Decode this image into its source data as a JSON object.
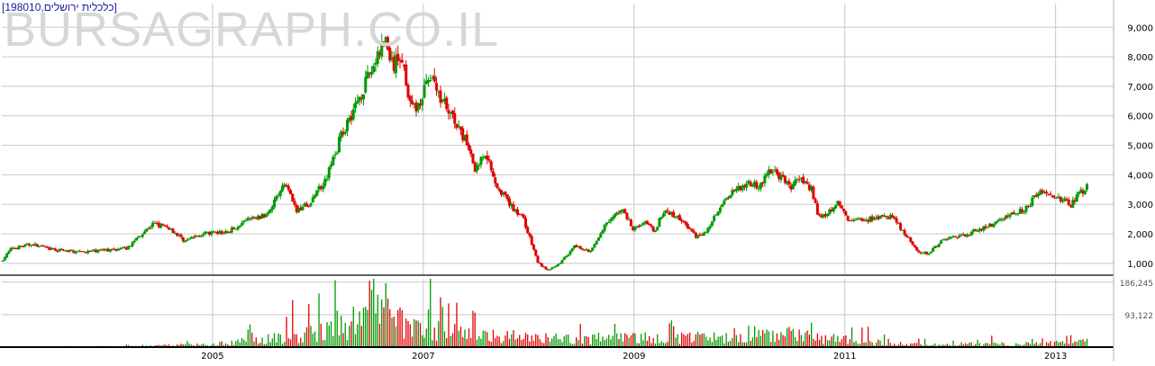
{
  "title": "[כלכלית ירושלים,198010]",
  "watermark": "BURSAGRAPH.CO.IL",
  "colors": {
    "up": "#009900",
    "down": "#e00000",
    "grid": "#c8c8c8",
    "axis": "#000000",
    "label": "#555555"
  },
  "chart_data": {
    "type": "candlestick",
    "price_axis": {
      "ylim": [
        600,
        9800
      ],
      "ticks": [
        1000,
        2000,
        3000,
        4000,
        5000,
        6000,
        7000,
        8000,
        9000
      ],
      "tick_labels": [
        "1,000",
        "2,000",
        "3,000",
        "4,000",
        "5,000",
        "6,000",
        "7,000",
        "8,000",
        "9,000"
      ]
    },
    "volume_axis": {
      "ylim": [
        0,
        196000
      ],
      "ticks": [
        93122,
        186245
      ],
      "tick_labels": [
        "93,122",
        "186,245"
      ]
    },
    "x_axis": {
      "xlim": [
        2003.0,
        2013.55
      ],
      "ticks": [
        2005,
        2007,
        2009,
        2011,
        2013
      ],
      "tick_labels": [
        "2005",
        "2007",
        "2009",
        "2011",
        "2013"
      ]
    },
    "price_path": [
      [
        2003.0,
        1050
      ],
      [
        2003.1,
        1500
      ],
      [
        2003.3,
        1650
      ],
      [
        2003.5,
        1450
      ],
      [
        2003.75,
        1380
      ],
      [
        2004.0,
        1450
      ],
      [
        2004.2,
        1500
      ],
      [
        2004.3,
        1900
      ],
      [
        2004.45,
        2350
      ],
      [
        2004.6,
        2200
      ],
      [
        2004.75,
        1750
      ],
      [
        2004.9,
        2000
      ],
      [
        2005.15,
        2050
      ],
      [
        2005.35,
        2500
      ],
      [
        2005.5,
        2600
      ],
      [
        2005.7,
        3700
      ],
      [
        2005.8,
        2800
      ],
      [
        2005.95,
        3100
      ],
      [
        2006.1,
        4000
      ],
      [
        2006.25,
        5500
      ],
      [
        2006.4,
        6600
      ],
      [
        2006.55,
        7800
      ],
      [
        2006.65,
        8600
      ],
      [
        2006.72,
        7600
      ],
      [
        2006.8,
        8100
      ],
      [
        2006.9,
        6200
      ],
      [
        2007.0,
        6500
      ],
      [
        2007.05,
        7500
      ],
      [
        2007.15,
        6800
      ],
      [
        2007.25,
        6200
      ],
      [
        2007.35,
        5500
      ],
      [
        2007.45,
        4900
      ],
      [
        2007.5,
        4200
      ],
      [
        2007.6,
        4800
      ],
      [
        2007.7,
        3700
      ],
      [
        2007.85,
        2900
      ],
      [
        2007.95,
        2600
      ],
      [
        2008.1,
        1000
      ],
      [
        2008.2,
        750
      ],
      [
        2008.3,
        1000
      ],
      [
        2008.45,
        1600
      ],
      [
        2008.6,
        1400
      ],
      [
        2008.75,
        2400
      ],
      [
        2008.9,
        2800
      ],
      [
        2009.0,
        2200
      ],
      [
        2009.1,
        2400
      ],
      [
        2009.2,
        2100
      ],
      [
        2009.3,
        2800
      ],
      [
        2009.45,
        2500
      ],
      [
        2009.6,
        1900
      ],
      [
        2009.7,
        2100
      ],
      [
        2009.8,
        2800
      ],
      [
        2009.95,
        3500
      ],
      [
        2010.1,
        3700
      ],
      [
        2010.2,
        3600
      ],
      [
        2010.3,
        4200
      ],
      [
        2010.4,
        3900
      ],
      [
        2010.5,
        3600
      ],
      [
        2010.6,
        3900
      ],
      [
        2010.7,
        3500
      ],
      [
        2010.75,
        2600
      ],
      [
        2010.85,
        2700
      ],
      [
        2010.95,
        3100
      ],
      [
        2011.05,
        2400
      ],
      [
        2011.15,
        2500
      ],
      [
        2011.3,
        2500
      ],
      [
        2011.45,
        2600
      ],
      [
        2011.6,
        1900
      ],
      [
        2011.7,
        1400
      ],
      [
        2011.8,
        1350
      ],
      [
        2011.95,
        1800
      ],
      [
        2012.1,
        1900
      ],
      [
        2012.25,
        2100
      ],
      [
        2012.4,
        2300
      ],
      [
        2012.6,
        2700
      ],
      [
        2012.75,
        2900
      ],
      [
        2012.85,
        3500
      ],
      [
        2012.95,
        3300
      ],
      [
        2013.05,
        3200
      ],
      [
        2013.15,
        3000
      ],
      [
        2013.25,
        3400
      ],
      [
        2013.3,
        3600
      ]
    ],
    "volume_path": [
      [
        2003.0,
        500
      ],
      [
        2003.5,
        800
      ],
      [
        2004.0,
        1000
      ],
      [
        2004.5,
        5000
      ],
      [
        2005.0,
        9000
      ],
      [
        2005.5,
        25000
      ],
      [
        2006.0,
        45000
      ],
      [
        2006.3,
        70000
      ],
      [
        2006.55,
        170000
      ],
      [
        2006.7,
        90000
      ],
      [
        2007.0,
        60000
      ],
      [
        2007.5,
        40000
      ],
      [
        2007.8,
        35000
      ],
      [
        2008.2,
        28000
      ],
      [
        2008.6,
        25000
      ],
      [
        2009.0,
        30000
      ],
      [
        2009.4,
        28000
      ],
      [
        2009.8,
        32000
      ],
      [
        2010.2,
        45000
      ],
      [
        2010.5,
        38000
      ],
      [
        2010.9,
        25000
      ],
      [
        2011.3,
        15000
      ],
      [
        2011.7,
        8000
      ],
      [
        2012.2,
        10000
      ],
      [
        2012.7,
        10000
      ],
      [
        2013.1,
        14000
      ],
      [
        2013.3,
        16000
      ]
    ]
  }
}
